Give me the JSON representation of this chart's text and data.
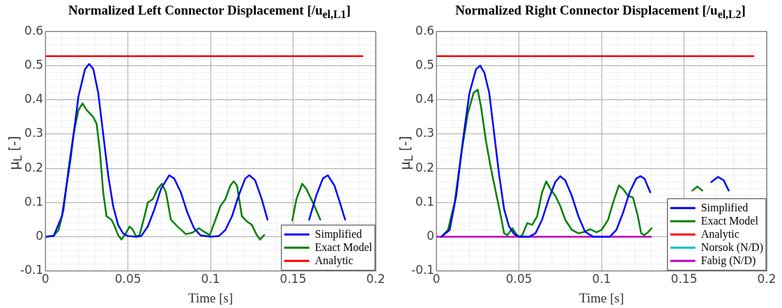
{
  "chart_data": [
    {
      "type": "line",
      "title": "Normalized Left Connector Displacement [/u$_{el,L1}$]",
      "xlabel": "Time [s]",
      "ylabel": "μ$_{L}$ [-]",
      "xlim": [
        0,
        0.2
      ],
      "xticks": [
        0,
        0.05,
        0.1,
        0.15,
        0.2
      ],
      "ylim": [
        -0.1,
        0.6
      ],
      "yticks": [
        -0.1,
        0,
        0.1,
        0.2,
        0.3,
        0.4,
        0.5,
        0.6
      ],
      "grid": true,
      "legend": "bottom right",
      "marker": "none",
      "line_style": "solid",
      "series": [
        {
          "name": "Simplified",
          "color": "#0000ff",
          "x": [
            0,
            0.005,
            0.01,
            0.015,
            0.02,
            0.024,
            0.0265,
            0.029,
            0.032,
            0.035,
            0.038,
            0.041,
            0.044,
            0.047,
            0.05,
            0.055,
            0.058,
            0.062,
            0.066,
            0.07,
            0.075,
            0.078,
            0.082,
            0.086,
            0.09,
            0.094,
            0.1,
            0.105,
            0.109,
            0.113,
            0.117,
            0.121,
            0.1235,
            0.127,
            0.131,
            0.1345,
            0.15,
            0.1597,
            0.164,
            0.168,
            0.171,
            0.175,
            0.179,
            0.1815
          ],
          "values": [
            0,
            0.002,
            0.06,
            0.22,
            0.41,
            0.49,
            0.505,
            0.49,
            0.42,
            0.3,
            0.18,
            0.09,
            0.035,
            0.01,
            0.002,
            0,
            0.002,
            0.03,
            0.08,
            0.14,
            0.18,
            0.17,
            0.13,
            0.07,
            0.025,
            0.004,
            0,
            0.002,
            0.02,
            0.06,
            0.12,
            0.17,
            0.18,
            0.165,
            0.11,
            0.05,
            null,
            0.05,
            0.12,
            0.17,
            0.18,
            0.15,
            0.09,
            0.05
          ]
        },
        {
          "name": "Exact Model",
          "color": "#008000",
          "x": [
            0,
            0.005,
            0.008,
            0.011,
            0.014,
            0.017,
            0.02,
            0.0225,
            0.025,
            0.029,
            0.031,
            0.033,
            0.035,
            0.037,
            0.04,
            0.042,
            0.044,
            0.046,
            0.048,
            0.051,
            0.053,
            0.055,
            0.057,
            0.06,
            0.062,
            0.065,
            0.068,
            0.0705,
            0.073,
            0.076,
            0.08,
            0.085,
            0.089,
            0.093,
            0.096,
            0.0995,
            0.103,
            0.106,
            0.109,
            0.112,
            0.114,
            0.116,
            0.119,
            0.122,
            0.125,
            0.128,
            0.13,
            0.1325,
            0.14,
            0.1495,
            0.152,
            0.1555,
            0.158,
            0.162,
            0.1665
          ],
          "values": [
            0,
            0.003,
            0.02,
            0.08,
            0.2,
            0.3,
            0.37,
            0.39,
            0.37,
            0.35,
            0.33,
            0.25,
            0.13,
            0.06,
            0.05,
            0.03,
            0.005,
            -0.008,
            0.005,
            0.03,
            0.02,
            0,
            0.005,
            0.06,
            0.1,
            0.11,
            0.14,
            0.155,
            0.13,
            0.05,
            0.03,
            0.008,
            0.012,
            0.025,
            0.015,
            0.005,
            0.05,
            0.09,
            0.11,
            0.15,
            0.162,
            0.15,
            0.06,
            0.045,
            0.035,
            0.005,
            -0.008,
            0.005,
            null,
            0.048,
            0.11,
            0.155,
            0.14,
            0.1,
            0.05
          ]
        },
        {
          "name": "Analytic",
          "color": "#ff0000",
          "x": [
            0,
            0.192
          ],
          "values": [
            0.528,
            0.528
          ]
        }
      ]
    },
    {
      "type": "line",
      "title": "Normalized Right Connector Displacement [/u$_{el,L2}$]",
      "xlabel": "Time [s]",
      "ylabel": "μ$_{L}$ [-]",
      "xlim": [
        0,
        0.2
      ],
      "xticks": [
        0,
        0.05,
        0.1,
        0.15,
        0.2
      ],
      "ylim": [
        -0.1,
        0.6
      ],
      "yticks": [
        -0.1,
        0,
        0.1,
        0.2,
        0.3,
        0.4,
        0.5,
        0.6
      ],
      "grid": true,
      "legend": "bottom right",
      "marker": "none",
      "line_style": "solid",
      "series": [
        {
          "name": "Simplified",
          "color": "#0000ff",
          "x": [
            0.003,
            0.008,
            0.012,
            0.016,
            0.02,
            0.024,
            0.0265,
            0.029,
            0.032,
            0.035,
            0.038,
            0.041,
            0.044,
            0.047,
            0.05,
            0.056,
            0.06,
            0.064,
            0.068,
            0.072,
            0.075,
            0.078,
            0.082,
            0.086,
            0.09,
            0.095,
            0.105,
            0.109,
            0.113,
            0.117,
            0.121,
            0.1235,
            0.126,
            0.1295,
            0.15,
            0.1665,
            0.1705,
            0.174,
            0.177
          ],
          "values": [
            0,
            0.02,
            0.12,
            0.28,
            0.42,
            0.49,
            0.5,
            0.48,
            0.42,
            0.3,
            0.18,
            0.08,
            0.03,
            0.008,
            0,
            0,
            0.01,
            0.05,
            0.11,
            0.16,
            0.177,
            0.165,
            0.12,
            0.06,
            0.015,
            0,
            0,
            0.02,
            0.07,
            0.13,
            0.17,
            0.177,
            0.17,
            0.13,
            null,
            0.16,
            0.175,
            0.165,
            0.135
          ]
        },
        {
          "name": "Exact Model",
          "color": "#008000",
          "x": [
            0.003,
            0.007,
            0.011,
            0.015,
            0.019,
            0.0225,
            0.025,
            0.027,
            0.03,
            0.033,
            0.036,
            0.039,
            0.041,
            0.043,
            0.046,
            0.048,
            0.05,
            0.052,
            0.055,
            0.058,
            0.061,
            0.064,
            0.0665,
            0.069,
            0.072,
            0.075,
            0.078,
            0.082,
            0.086,
            0.09,
            0.093,
            0.097,
            0.1,
            0.104,
            0.107,
            0.1105,
            0.113,
            0.116,
            0.119,
            0.122,
            0.124,
            0.126,
            0.1285,
            0.1303,
            0.14,
            0.155,
            0.158,
            0.161
          ],
          "values": [
            0,
            0.02,
            0.1,
            0.24,
            0.36,
            0.42,
            0.43,
            0.38,
            0.28,
            0.2,
            0.13,
            0.06,
            0.01,
            0.005,
            0.025,
            0.01,
            0,
            0.005,
            0.04,
            0.035,
            0.06,
            0.13,
            0.162,
            0.14,
            0.12,
            0.09,
            0.05,
            0.02,
            0.01,
            0.015,
            0.022,
            0.013,
            0.02,
            0.05,
            0.1,
            0.15,
            0.14,
            0.12,
            0.115,
            0.06,
            0.01,
            0.005,
            0.015,
            0.025,
            null,
            0.135,
            0.147,
            0.135
          ]
        },
        {
          "name": "Analytic",
          "color": "#ff0000",
          "x": [
            0,
            0.192
          ],
          "values": [
            0.528,
            0.528
          ]
        },
        {
          "name": "Norsok (N/D)",
          "color": "#00bfbf"
        },
        {
          "name": "Fabig (N/D)",
          "color": "#bf00bf",
          "x": [
            0,
            0.13
          ],
          "values": [
            0,
            0
          ]
        }
      ]
    }
  ]
}
